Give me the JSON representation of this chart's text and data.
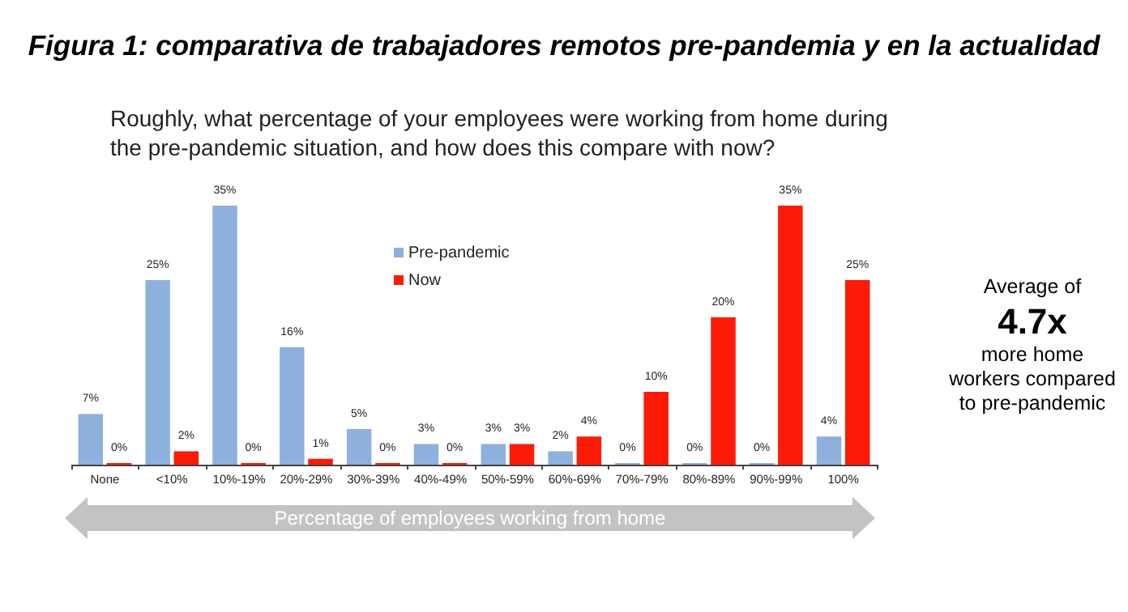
{
  "chart_data": {
    "type": "bar",
    "title": "Figura 1: comparativa de trabajadores remotos pre-pandemia y en la actualidad",
    "subtitle": "Roughly, what percentage of your employees were working from home during the pre-pandemic situation, and how does this compare with now?",
    "xlabel": "Percentage of employees working from home",
    "categories": [
      "None",
      "<10%",
      "10%-19%",
      "20%-29%",
      "30%-39%",
      "40%-49%",
      "50%-59%",
      "60%-69%",
      "70%-79%",
      "80%-89%",
      "90%-99%",
      "100%"
    ],
    "series": [
      {
        "name": "Pre-pandemic",
        "color": "#8eb0dd",
        "values": [
          7,
          25,
          35,
          16,
          5,
          3,
          3,
          2,
          0,
          0,
          0,
          4
        ],
        "value_labels": [
          "7%",
          "25%",
          "35%",
          "16%",
          "5%",
          "3%",
          "3%",
          "2%",
          "0%",
          "0%",
          "0%",
          "4%"
        ]
      },
      {
        "name": "Now",
        "color": "#fb1b06",
        "values": [
          0,
          2,
          0,
          1,
          0,
          0,
          3,
          4,
          10,
          20,
          35,
          25
        ],
        "value_labels": [
          "0%",
          "2%",
          "0%",
          "1%",
          "0%",
          "0%",
          "3%",
          "4%",
          "10%",
          "20%",
          "35%",
          "25%"
        ]
      }
    ],
    "tick_labels": "x",
    "legend": "top",
    "grid": false,
    "annotations": [
      "Average of",
      "4.7x",
      "more home workers compared to pre-pandemic"
    ]
  }
}
